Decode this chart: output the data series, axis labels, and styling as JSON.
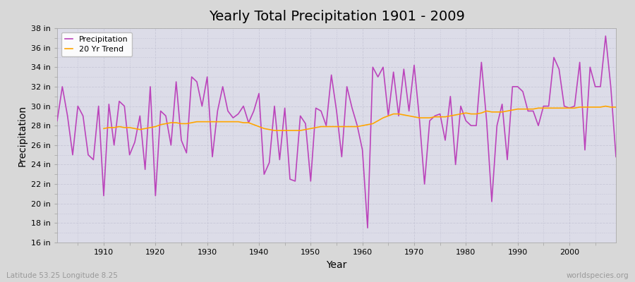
{
  "title": "Yearly Total Precipitation 1901 - 2009",
  "xlabel": "Year",
  "ylabel": "Precipitation",
  "lat_lon_label": "Latitude 53.25 Longitude 8.25",
  "source_label": "worldspecies.org",
  "years": [
    1901,
    1902,
    1903,
    1904,
    1905,
    1906,
    1907,
    1908,
    1909,
    1910,
    1911,
    1912,
    1913,
    1914,
    1915,
    1916,
    1917,
    1918,
    1919,
    1920,
    1921,
    1922,
    1923,
    1924,
    1925,
    1926,
    1927,
    1928,
    1929,
    1930,
    1931,
    1932,
    1933,
    1934,
    1935,
    1936,
    1937,
    1938,
    1939,
    1940,
    1941,
    1942,
    1943,
    1944,
    1945,
    1946,
    1947,
    1948,
    1949,
    1950,
    1951,
    1952,
    1953,
    1954,
    1955,
    1956,
    1957,
    1958,
    1959,
    1960,
    1961,
    1962,
    1963,
    1964,
    1965,
    1966,
    1967,
    1968,
    1969,
    1970,
    1971,
    1972,
    1973,
    1974,
    1975,
    1976,
    1977,
    1978,
    1979,
    1980,
    1981,
    1982,
    1983,
    1984,
    1985,
    1986,
    1987,
    1988,
    1989,
    1990,
    1991,
    1992,
    1993,
    1994,
    1995,
    1996,
    1997,
    1998,
    1999,
    2000,
    2001,
    2002,
    2003,
    2004,
    2005,
    2006,
    2007,
    2008,
    2009
  ],
  "precip_in": [
    28.5,
    32.0,
    29.0,
    25.0,
    30.0,
    29.0,
    25.0,
    24.5,
    30.0,
    20.8,
    30.2,
    26.0,
    30.5,
    30.0,
    25.0,
    26.3,
    29.0,
    23.5,
    32.0,
    20.8,
    29.5,
    29.0,
    26.0,
    32.5,
    26.5,
    25.2,
    33.0,
    32.5,
    30.0,
    33.0,
    24.8,
    29.5,
    32.0,
    29.5,
    28.8,
    29.2,
    30.0,
    28.3,
    29.5,
    31.3,
    23.0,
    24.2,
    30.0,
    24.5,
    29.8,
    22.5,
    22.3,
    29.0,
    28.2,
    22.3,
    29.8,
    29.5,
    28.0,
    33.2,
    29.5,
    24.8,
    32.0,
    29.8,
    28.0,
    25.5,
    17.5,
    34.0,
    33.0,
    34.0,
    29.0,
    33.5,
    29.0,
    33.8,
    29.5,
    34.2,
    28.8,
    22.0,
    28.5,
    29.0,
    29.2,
    26.5,
    31.0,
    24.0,
    30.0,
    28.5,
    28.0,
    28.0,
    34.5,
    28.5,
    20.2,
    28.0,
    30.2,
    24.5,
    32.0,
    32.0,
    31.5,
    29.5,
    29.5,
    28.0,
    30.0,
    30.0,
    35.0,
    33.8,
    30.0,
    29.8,
    30.0,
    34.5,
    25.5,
    34.0,
    32.0,
    32.0,
    37.2,
    32.0,
    24.8
  ],
  "trend_years": [
    1910,
    1911,
    1912,
    1913,
    1914,
    1915,
    1916,
    1917,
    1918,
    1919,
    1920,
    1921,
    1922,
    1923,
    1924,
    1925,
    1926,
    1927,
    1928,
    1929,
    1930,
    1931,
    1932,
    1933,
    1934,
    1935,
    1936,
    1937,
    1938,
    1939,
    1940,
    1941,
    1942,
    1943,
    1944,
    1945,
    1946,
    1947,
    1948,
    1949,
    1950,
    1951,
    1952,
    1953,
    1954,
    1955,
    1956,
    1957,
    1958,
    1959,
    1960,
    1961,
    1962,
    1963,
    1964,
    1965,
    1966,
    1967,
    1968,
    1969,
    1970,
    1971,
    1972,
    1973,
    1974,
    1975,
    1976,
    1977,
    1978,
    1979,
    1980,
    1981,
    1982,
    1983,
    1984,
    1985,
    1986,
    1987,
    1988,
    1989,
    1990,
    1991,
    1992,
    1993,
    1994,
    1995,
    1996,
    1997,
    1998,
    1999,
    2000,
    2001,
    2002,
    2003,
    2004,
    2005,
    2006,
    2007,
    2008,
    2009
  ],
  "trend_in": [
    27.7,
    27.8,
    27.8,
    27.9,
    27.8,
    27.8,
    27.7,
    27.6,
    27.7,
    27.8,
    27.9,
    28.1,
    28.2,
    28.3,
    28.3,
    28.2,
    28.2,
    28.3,
    28.4,
    28.4,
    28.4,
    28.4,
    28.4,
    28.4,
    28.4,
    28.4,
    28.4,
    28.3,
    28.3,
    28.1,
    27.9,
    27.7,
    27.6,
    27.5,
    27.5,
    27.5,
    27.5,
    27.5,
    27.5,
    27.6,
    27.7,
    27.8,
    27.9,
    27.9,
    27.9,
    27.9,
    27.9,
    27.9,
    27.9,
    27.9,
    28.0,
    28.1,
    28.2,
    28.5,
    28.8,
    29.0,
    29.2,
    29.2,
    29.1,
    29.0,
    28.9,
    28.8,
    28.8,
    28.8,
    28.9,
    28.9,
    28.9,
    29.0,
    29.1,
    29.2,
    29.3,
    29.2,
    29.2,
    29.3,
    29.5,
    29.4,
    29.4,
    29.4,
    29.5,
    29.6,
    29.7,
    29.7,
    29.7,
    29.7,
    29.8,
    29.8,
    29.8,
    29.8,
    29.8,
    29.8,
    29.8,
    29.8,
    29.9,
    29.9,
    29.9,
    29.9,
    29.9,
    30.0,
    29.9,
    29.9
  ],
  "precip_color": "#bb44bb",
  "trend_color": "#ffa500",
  "fig_bg_color": "#d8d8d8",
  "plot_bg_color": "#dcdce8",
  "grid_color": "#c8c8d8",
  "ylim": [
    16,
    38
  ],
  "yticks": [
    16,
    18,
    20,
    22,
    24,
    26,
    28,
    30,
    32,
    34,
    36,
    38
  ],
  "xlim": [
    1901,
    2009
  ],
  "xticks": [
    1910,
    1920,
    1930,
    1940,
    1950,
    1960,
    1970,
    1980,
    1990,
    2000
  ],
  "title_fontsize": 14,
  "axis_label_fontsize": 10,
  "tick_fontsize": 8,
  "line_width": 1.2
}
